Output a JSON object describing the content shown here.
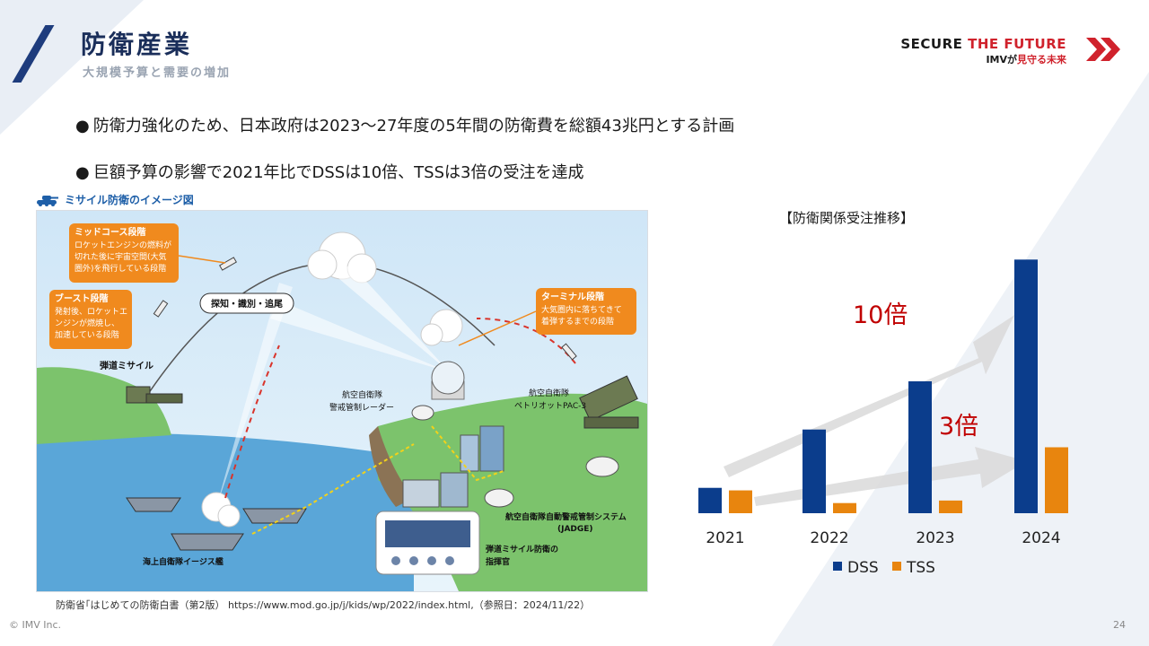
{
  "header": {
    "title": "防衛産業",
    "subtitle": "大規模予算と需要の増加"
  },
  "brand": {
    "line1_part1": "SECURE ",
    "line1_part2": "THE FUTURE",
    "line2_part1": "IMVが",
    "line2_part2": "見守る未来",
    "colors": {
      "dark": "#1a1a1a",
      "red": "#d0222c"
    }
  },
  "bullets": [
    {
      "mark": "●",
      "text": "防衛力強化のため、日本政府は2023～27年度の5年間の防衛費を総額43兆円とする計画"
    },
    {
      "mark": "●",
      "text": "巨額予算の影響で2021年比でDSSは10倍、TSSは3倍の受注を達成"
    }
  ],
  "figure": {
    "label": "ミサイル防衛のイメージ図",
    "icon": "tank-icon",
    "boxes": {
      "midcourse": {
        "title": "ミッドコース段階",
        "lines": [
          "ロケットエンジンの燃料が",
          "切れた後に宇宙空間(大気",
          "圏外)を飛行している段階"
        ]
      },
      "boost": {
        "title": "ブースト段階",
        "lines": [
          "発射後、ロケットエ",
          "ンジンが燃焼し、",
          "加速している段階"
        ]
      },
      "terminal": {
        "title": "ターミナル段階",
        "lines": [
          "大気圏内に落ちてきて",
          "着弾するまでの段階"
        ]
      }
    },
    "labels": {
      "detect": "探知・識別・追尾",
      "ballistic": "弾道ミサイル",
      "radar_1": "航空自衛隊",
      "radar_2": "警戒管制レーダー",
      "pac3_1": "航空自衛隊",
      "pac3_2": "ペトリオットPAC-3",
      "jadge_1": "航空自衛隊自動警戒管制システム",
      "jadge_2": "(JADGE)",
      "commander_1": "弾道ミサイル防衛の",
      "commander_2": "指揮官",
      "aegis": "海上自衛隊イージス艦"
    }
  },
  "source": "防衛省｢はじめての防衛白書（第2版） https://www.mod.go.jp/j/kids/wp/2022/index.html,（参照日：2024/11/22）",
  "footer": {
    "copyright": "© IMV Inc.",
    "page": "24"
  },
  "chart_data": {
    "type": "bar",
    "title": "【防衛関係受注推移】",
    "categories": [
      "2021",
      "2022",
      "2023",
      "2024"
    ],
    "series": [
      {
        "name": "DSS",
        "color": "#0b3d8c",
        "values": [
          1.0,
          3.3,
          5.2,
          10.0
        ]
      },
      {
        "name": "TSS",
        "color": "#e8850e",
        "values": [
          0.9,
          0.4,
          0.5,
          2.6
        ]
      }
    ],
    "ylim": [
      0,
      10.4
    ],
    "grid": false,
    "legend": "bottom",
    "annotations": [
      {
        "text": "10倍",
        "color": "#c00000"
      },
      {
        "text": "3倍",
        "color": "#c00000"
      }
    ]
  }
}
